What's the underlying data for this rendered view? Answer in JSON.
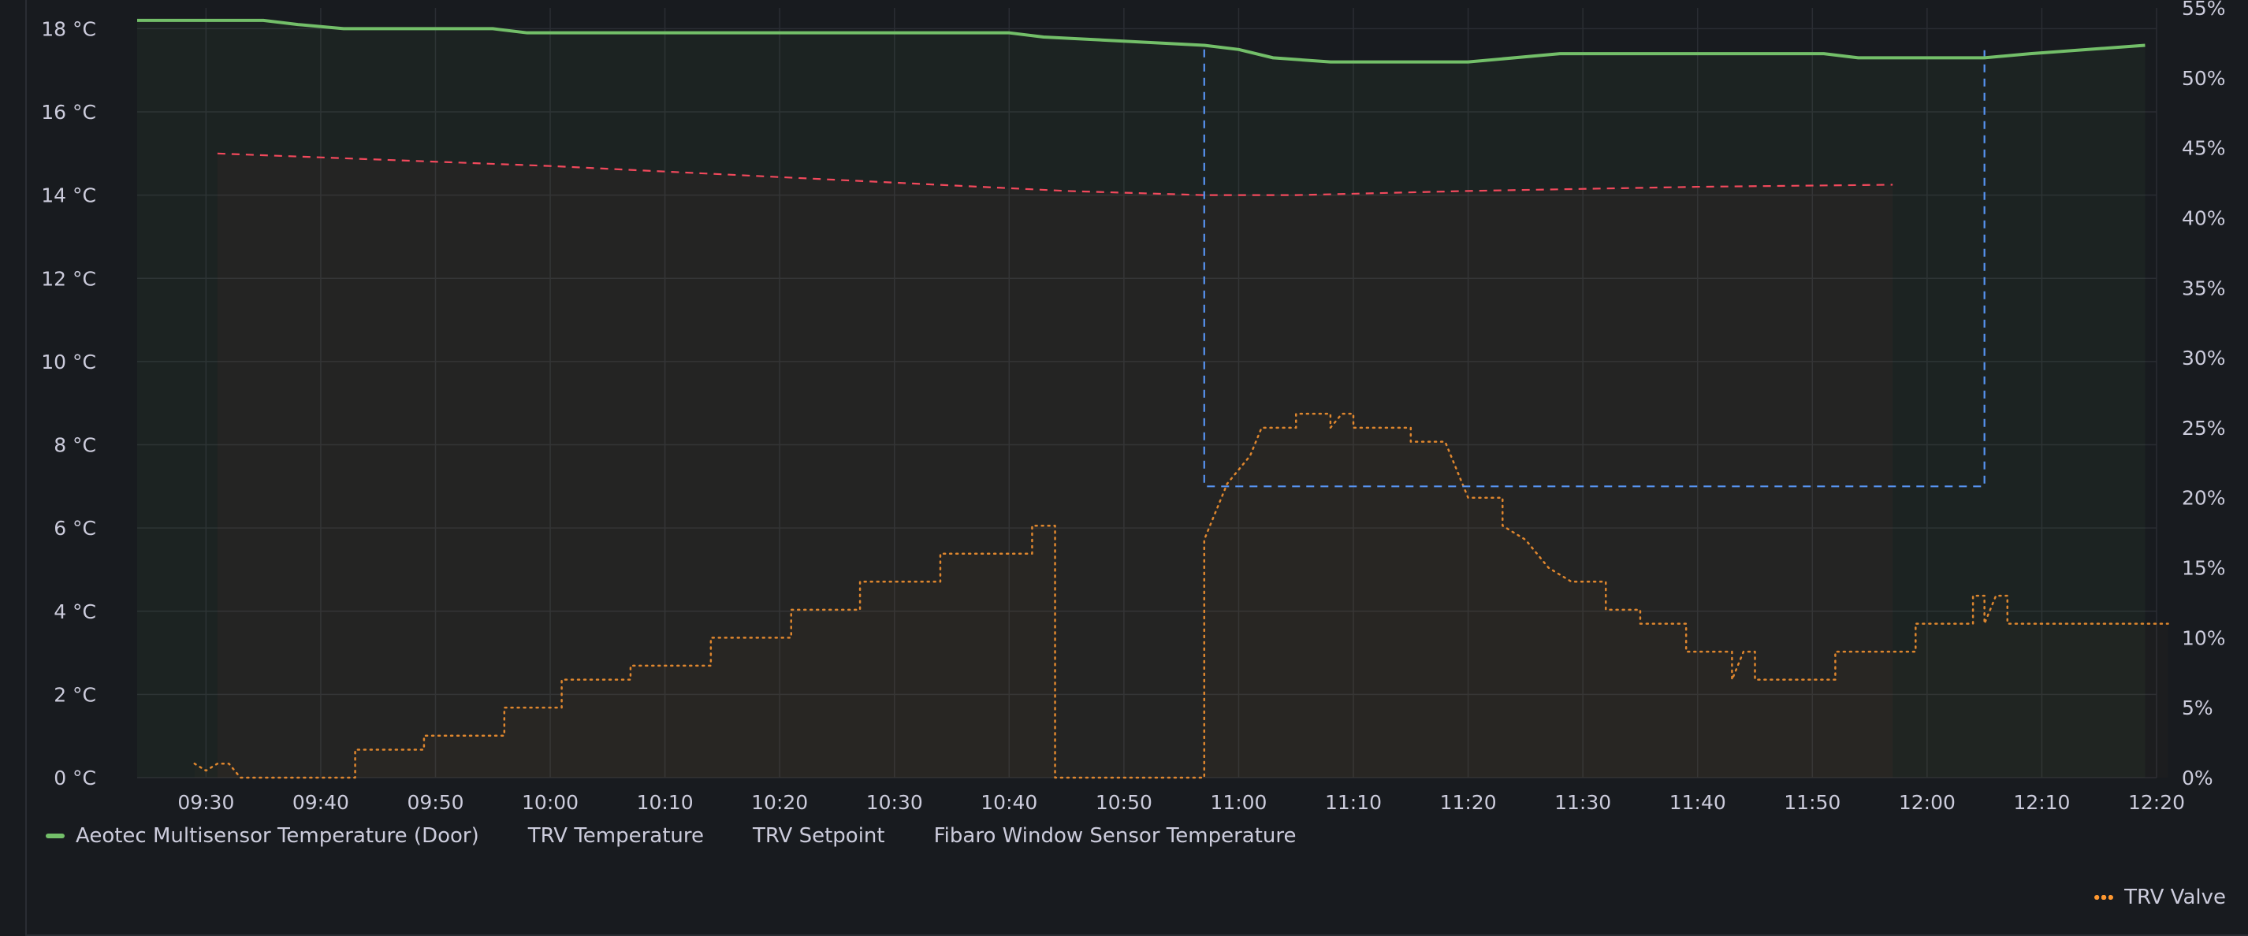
{
  "chart_data": {
    "type": "line",
    "x_ticks": [
      "09:30",
      "09:40",
      "09:50",
      "10:00",
      "10:10",
      "10:20",
      "10:30",
      "10:40",
      "10:50",
      "11:00",
      "11:10",
      "11:20",
      "11:30",
      "11:40",
      "11:50",
      "12:00",
      "12:10",
      "12:20"
    ],
    "x_range": [
      "09:24",
      "12:20"
    ],
    "y_left": {
      "unit": "°C",
      "range": [
        0,
        18.5
      ],
      "ticks": [
        "0 °C",
        "2 °C",
        "4 °C",
        "6 °C",
        "8 °C",
        "10 °C",
        "12 °C",
        "14 °C",
        "16 °C",
        "18 °C"
      ]
    },
    "y_right": {
      "unit": "%",
      "range": [
        0,
        55
      ],
      "ticks": [
        "0%",
        "5%",
        "10%",
        "15%",
        "20%",
        "25%",
        "30%",
        "35%",
        "40%",
        "45%",
        "50%",
        "55%"
      ]
    },
    "grid": true,
    "legend_placement": "bottom-left",
    "series": [
      {
        "name": "Aeotec Multisensor Temperature (Door)",
        "color": "#73bf69",
        "style": "solid",
        "axis": "left",
        "points": [
          [
            "09:24",
            18.2
          ],
          [
            "09:35",
            18.2
          ],
          [
            "09:38",
            18.1
          ],
          [
            "09:42",
            18.0
          ],
          [
            "09:55",
            18.0
          ],
          [
            "09:58",
            17.9
          ],
          [
            "10:40",
            17.9
          ],
          [
            "10:43",
            17.8
          ],
          [
            "10:57",
            17.6
          ],
          [
            "11:00",
            17.5
          ],
          [
            "11:03",
            17.3
          ],
          [
            "11:08",
            17.2
          ],
          [
            "11:20",
            17.2
          ],
          [
            "11:28",
            17.4
          ],
          [
            "11:51",
            17.4
          ],
          [
            "11:54",
            17.3
          ],
          [
            "12:05",
            17.3
          ],
          [
            "12:09",
            17.4
          ],
          [
            "12:19",
            17.6
          ]
        ]
      },
      {
        "name": "TRV Temperature",
        "color": "#fade2a",
        "style": "dashed",
        "axis": "left",
        "points": []
      },
      {
        "name": "TRV Setpoint",
        "color": "#5794f2",
        "style": "dashed",
        "axis": "left",
        "points": [
          [
            "10:57",
            17.5
          ],
          [
            "10:57",
            7.0
          ],
          [
            "12:05",
            7.0
          ],
          [
            "12:05",
            17.5
          ]
        ]
      },
      {
        "name": "Fibaro Window Sensor Temperature",
        "color": "#f2495c",
        "style": "dashed",
        "axis": "left",
        "points": [
          [
            "09:31",
            15.0
          ],
          [
            "10:00",
            14.7
          ],
          [
            "10:30",
            14.3
          ],
          [
            "10:45",
            14.1
          ],
          [
            "10:57",
            14.0
          ],
          [
            "11:00",
            14.0
          ],
          [
            "11:05",
            14.0
          ],
          [
            "11:20",
            14.1
          ],
          [
            "11:40",
            14.2
          ],
          [
            "11:57",
            14.25
          ]
        ]
      },
      {
        "name": "TRV Valve",
        "color": "#ff9830",
        "style": "dotted",
        "axis": "right",
        "points": [
          [
            "09:29",
            1
          ],
          [
            "09:30",
            0.5
          ],
          [
            "09:31",
            1
          ],
          [
            "09:32",
            1
          ],
          [
            "09:33",
            0
          ],
          [
            "09:43",
            0
          ],
          [
            "09:43",
            2
          ],
          [
            "09:49",
            2
          ],
          [
            "09:49",
            3
          ],
          [
            "09:56",
            3
          ],
          [
            "09:56",
            5
          ],
          [
            "10:01",
            5
          ],
          [
            "10:01",
            7
          ],
          [
            "10:07",
            7
          ],
          [
            "10:07",
            8
          ],
          [
            "10:14",
            8
          ],
          [
            "10:14",
            10
          ],
          [
            "10:21",
            10
          ],
          [
            "10:21",
            12
          ],
          [
            "10:27",
            12
          ],
          [
            "10:27",
            14
          ],
          [
            "10:34",
            14
          ],
          [
            "10:34",
            16
          ],
          [
            "10:42",
            16
          ],
          [
            "10:42",
            18
          ],
          [
            "10:44",
            18
          ],
          [
            "10:44",
            0
          ],
          [
            "10:57",
            0
          ],
          [
            "10:57",
            17
          ],
          [
            "10:58",
            19
          ],
          [
            "10:59",
            21
          ],
          [
            "11:00",
            22
          ],
          [
            "11:01",
            23
          ],
          [
            "11:02",
            25
          ],
          [
            "11:05",
            25
          ],
          [
            "11:05",
            26
          ],
          [
            "11:08",
            26
          ],
          [
            "11:08",
            25
          ],
          [
            "11:09",
            26
          ],
          [
            "11:10",
            26
          ],
          [
            "11:10",
            25
          ],
          [
            "11:15",
            25
          ],
          [
            "11:15",
            24
          ],
          [
            "11:18",
            24
          ],
          [
            "11:19",
            22
          ],
          [
            "11:20",
            20
          ],
          [
            "11:23",
            20
          ],
          [
            "11:23",
            18
          ],
          [
            "11:25",
            17
          ],
          [
            "11:27",
            15
          ],
          [
            "11:29",
            14
          ],
          [
            "11:32",
            14
          ],
          [
            "11:32",
            12
          ],
          [
            "11:35",
            12
          ],
          [
            "11:35",
            11
          ],
          [
            "11:39",
            11
          ],
          [
            "11:39",
            9
          ],
          [
            "11:43",
            9
          ],
          [
            "11:43",
            7
          ],
          [
            "11:44",
            9
          ],
          [
            "11:45",
            9
          ],
          [
            "11:45",
            7
          ],
          [
            "11:52",
            7
          ],
          [
            "11:52",
            9
          ],
          [
            "11:59",
            9
          ],
          [
            "11:59",
            11
          ],
          [
            "12:04",
            11
          ],
          [
            "12:04",
            13
          ],
          [
            "12:05",
            13
          ],
          [
            "12:05",
            11
          ],
          [
            "12:06",
            13
          ],
          [
            "12:07",
            13
          ],
          [
            "12:07",
            11
          ],
          [
            "12:21",
            11
          ]
        ]
      }
    ]
  },
  "legend": {
    "items": [
      {
        "label": "Aeotec Multisensor Temperature (Door)",
        "color": "#73bf69"
      },
      {
        "label": "TRV Temperature",
        "color": "#fade2a"
      },
      {
        "label": "TRV Setpoint",
        "color": "#5794f2"
      },
      {
        "label": "Fibaro Window Sensor Temperature",
        "color": "#f2495c"
      }
    ],
    "right_item": {
      "label": "TRV Valve",
      "color": "#ff9830"
    }
  }
}
